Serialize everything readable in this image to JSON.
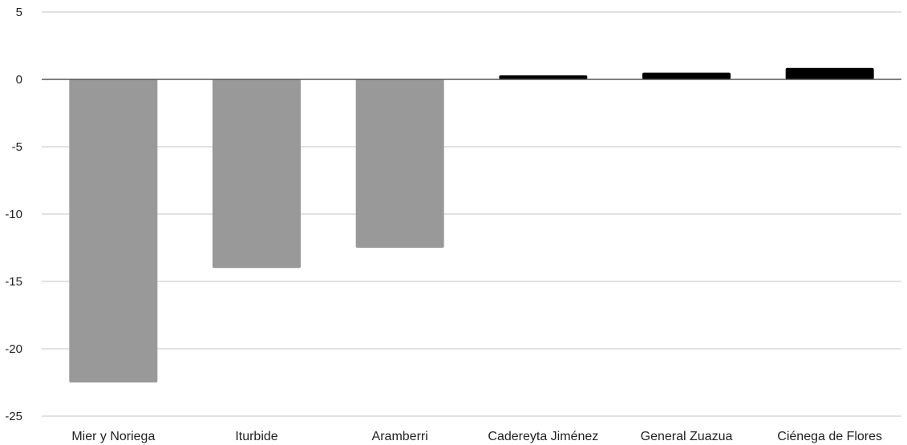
{
  "chart_data": {
    "type": "bar",
    "title": "",
    "xlabel": "",
    "ylabel": "",
    "categories": [
      "Mier y Noriega",
      "Iturbide",
      "Aramberri",
      "Cadereyta Jiménez",
      "General Zuazua",
      "Ciénega de Flores"
    ],
    "values": [
      -22.5,
      -14.0,
      -12.5,
      0.3,
      0.5,
      0.85
    ],
    "ylim": [
      -25,
      5
    ],
    "yticks": [
      5,
      0,
      -5,
      -10,
      -15,
      -20,
      -25
    ],
    "grid": true,
    "legend": "none",
    "colors": {
      "negative": "#999999",
      "positive": "#000000",
      "grid": "#d9d9d9",
      "zero_line": "#555555"
    }
  }
}
